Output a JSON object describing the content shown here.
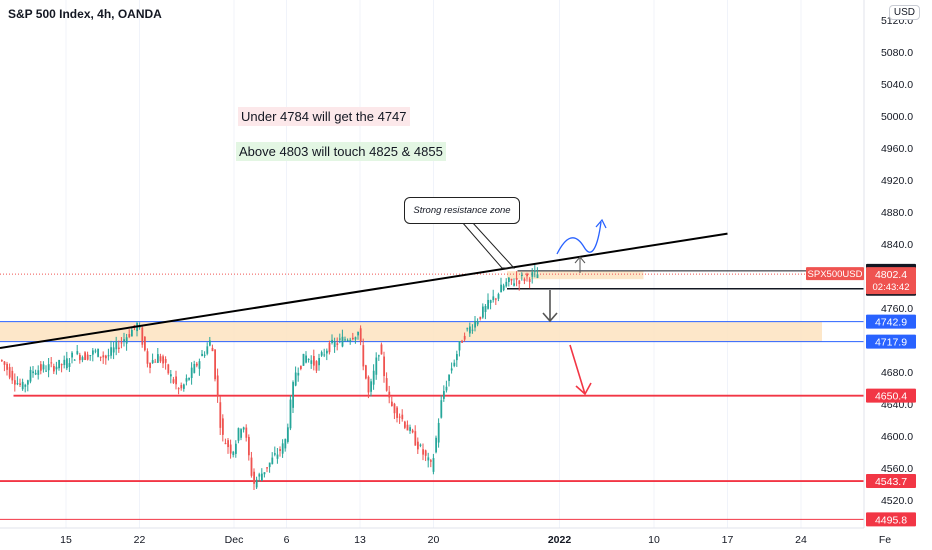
{
  "header": {
    "title": "S&P 500 Index, 4h, OANDA",
    "currency_button": "USD"
  },
  "notes": {
    "under": "Under 4784 will get the 4747",
    "above": "Above 4803 will touch 4825 & 4855",
    "resistance": "Strong resistance zone"
  },
  "colors": {
    "up": "#26a69a",
    "down": "#ef5350",
    "zone": "#fde3c0",
    "support": "#f23645",
    "level_blue": "#2962ff"
  },
  "chart_data": {
    "type": "candlestick",
    "title": "S&P 500 Index, 4h, OANDA",
    "y_ticks": [
      5120.0,
      5080.0,
      5040.0,
      5000.0,
      4960.0,
      4920.0,
      4880.0,
      4840.0,
      4800.0,
      4760.0,
      4720.0,
      4680.0,
      4640.0,
      4600.0,
      4560.0,
      4520.0
    ],
    "x_ticks": [
      "15",
      "22",
      "Dec",
      "6",
      "13",
      "20",
      "2022",
      "10",
      "17",
      "24",
      "Fe"
    ],
    "ylim": [
      4495,
      5135
    ],
    "price_series": [
      {
        "x": "Nov 9",
        "y": 4695
      },
      {
        "x": "Nov 10",
        "y": 4675
      },
      {
        "x": "Nov 11",
        "y": 4660
      },
      {
        "x": "Nov 12",
        "y": 4682
      },
      {
        "x": "Nov 15",
        "y": 4690
      },
      {
        "x": "Nov 16",
        "y": 4702
      },
      {
        "x": "Nov 17",
        "y": 4700
      },
      {
        "x": "Nov 18",
        "y": 4705
      },
      {
        "x": "Nov 19",
        "y": 4698
      },
      {
        "x": "Nov 22",
        "y": 4740
      },
      {
        "x": "Nov 23",
        "y": 4690
      },
      {
        "x": "Nov 24",
        "y": 4700
      },
      {
        "x": "Nov 26",
        "y": 4655
      },
      {
        "x": "Nov 29",
        "y": 4720
      },
      {
        "x": "Nov 30",
        "y": 4600
      },
      {
        "x": "Dec 1",
        "y": 4580
      },
      {
        "x": "Dec 2",
        "y": 4620
      },
      {
        "x": "Dec 3",
        "y": 4540
      },
      {
        "x": "Dec 6",
        "y": 4590
      },
      {
        "x": "Dec 7",
        "y": 4680
      },
      {
        "x": "Dec 8",
        "y": 4700
      },
      {
        "x": "Dec 9",
        "y": 4688
      },
      {
        "x": "Dec 10",
        "y": 4710
      },
      {
        "x": "Dec 13",
        "y": 4730
      },
      {
        "x": "Dec 14",
        "y": 4650
      },
      {
        "x": "Dec 15",
        "y": 4710
      },
      {
        "x": "Dec 16",
        "y": 4640
      },
      {
        "x": "Dec 17",
        "y": 4625
      },
      {
        "x": "Dec 20",
        "y": 4560
      },
      {
        "x": "Dec 21",
        "y": 4650
      },
      {
        "x": "Dec 22",
        "y": 4690
      },
      {
        "x": "Dec 23",
        "y": 4725
      },
      {
        "x": "Dec 27",
        "y": 4790
      },
      {
        "x": "Dec 28",
        "y": 4795
      },
      {
        "x": "Dec 29",
        "y": 4798
      },
      {
        "x": "Dec 30",
        "y": 4802
      }
    ],
    "trendline": {
      "from": {
        "x": "Nov 8",
        "y": 4715
      },
      "to": {
        "x": "Jan 17",
        "y": 4853
      }
    },
    "zones": [
      {
        "from_x": "Dec 27",
        "to_x": "Jan 9",
        "low": 4796,
        "high": 4806
      },
      {
        "from_x": "Nov 8",
        "to_x": "Jan 26",
        "low": 4718,
        "high": 4743
      }
    ],
    "levels": [
      {
        "label": "4806.4",
        "value": 4806.4
      },
      {
        "label": "4784.1",
        "value": 4784.1
      },
      {
        "label": "4742.9",
        "value": 4742.9
      },
      {
        "label": "4717.9",
        "value": 4717.9
      },
      {
        "label": "4650.4",
        "value": 4650.4
      },
      {
        "label": "4543.7",
        "value": 4543.7
      },
      {
        "label": "4495.8",
        "value": 4495.8
      }
    ],
    "last_price": {
      "symbol": "SPX500USD",
      "value": "4802.4",
      "countdown": "02:43:42"
    }
  }
}
